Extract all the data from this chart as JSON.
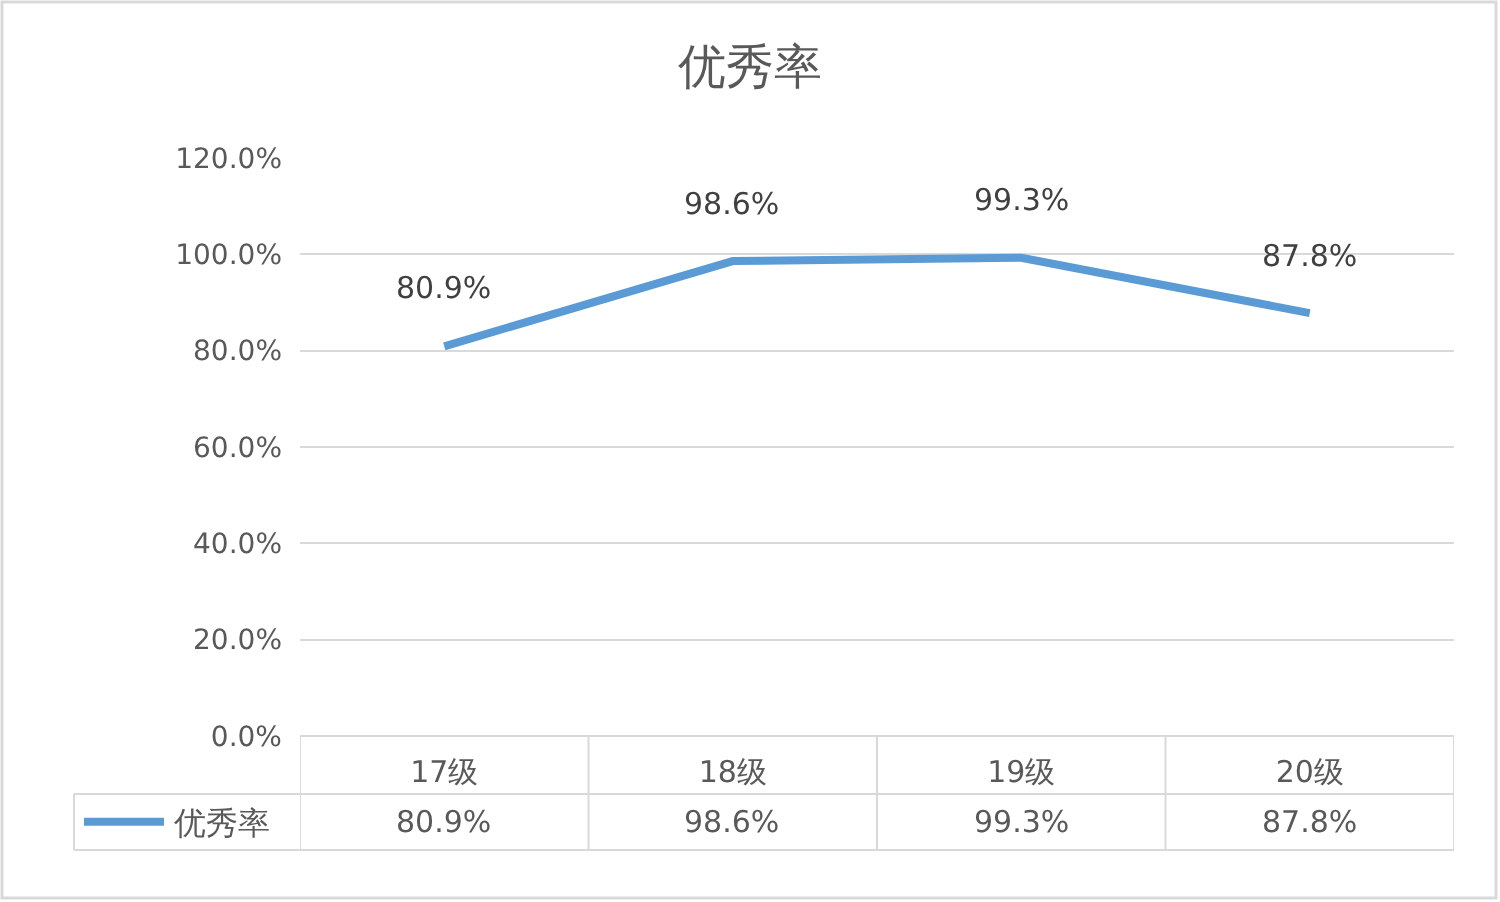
{
  "chart_data": {
    "type": "line",
    "title": "优秀率",
    "categories": [
      "17级",
      "18级",
      "19级",
      "20级"
    ],
    "series": [
      {
        "name": "优秀率",
        "color": "#5b9bd5",
        "values": [
          80.9,
          98.6,
          99.3,
          87.8
        ],
        "value_labels": [
          "80.9%",
          "98.6%",
          "99.3%",
          "87.8%"
        ]
      }
    ],
    "ylim": [
      0,
      120
    ],
    "yticks": [
      {
        "value": 0,
        "label": "0.0%"
      },
      {
        "value": 20,
        "label": "20.0%"
      },
      {
        "value": 40,
        "label": "40.0%"
      },
      {
        "value": 60,
        "label": "60.0%"
      },
      {
        "value": 80,
        "label": "80.0%"
      },
      {
        "value": 100,
        "label": "100.0%"
      },
      {
        "value": 120,
        "label": "120.0%"
      }
    ],
    "grid": "y",
    "legend": "bottom left",
    "line_style": "solid"
  }
}
